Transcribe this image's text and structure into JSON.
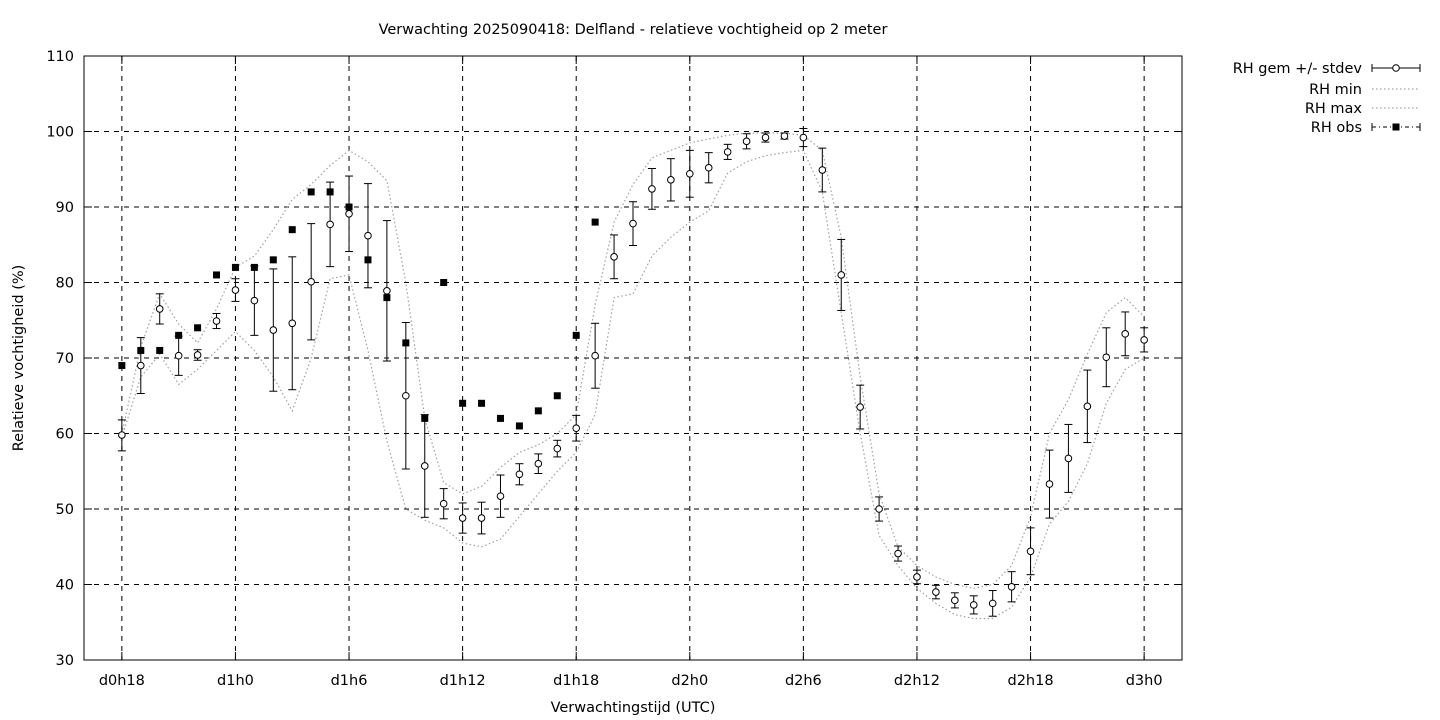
{
  "chart_data": {
    "type": "line",
    "title": "Verwachting 2025090418: Delfland - relatieve vochtigheid op 2 meter",
    "xlabel": "Verwachtingstijd (UTC)",
    "ylabel": "Relatieve vochtigheid (%)",
    "ylim": [
      30,
      110
    ],
    "xlim": [
      16,
      74
    ],
    "grid": true,
    "legend_position": "outside-top-right",
    "x_ticks": [
      {
        "x": 18,
        "label": "d0h18"
      },
      {
        "x": 24,
        "label": "d1h0"
      },
      {
        "x": 30,
        "label": "d1h6"
      },
      {
        "x": 36,
        "label": "d1h12"
      },
      {
        "x": 42,
        "label": "d1h18"
      },
      {
        "x": 48,
        "label": "d2h0"
      },
      {
        "x": 54,
        "label": "d2h6"
      },
      {
        "x": 60,
        "label": "d2h12"
      },
      {
        "x": 66,
        "label": "d2h18"
      },
      {
        "x": 72,
        "label": "d3h0"
      }
    ],
    "y_ticks": [
      "30",
      "40",
      "50",
      "60",
      "70",
      "80",
      "90",
      "100",
      "110"
    ],
    "x": [
      18,
      19,
      20,
      21,
      22,
      23,
      24,
      25,
      26,
      27,
      28,
      29,
      30,
      31,
      32,
      33,
      34,
      35,
      36,
      37,
      38,
      39,
      40,
      41,
      42,
      43,
      44,
      45,
      46,
      47,
      48,
      49,
      50,
      51,
      52,
      53,
      54,
      55,
      56,
      57,
      58,
      59,
      60,
      61,
      62,
      63,
      64,
      65,
      66,
      67,
      68,
      69,
      70,
      71,
      72
    ],
    "series": [
      {
        "name": "RH gem +/- stdev",
        "style": "errorbars",
        "color": "#000000",
        "values": [
          59.8,
          69.0,
          76.5,
          70.3,
          70.4,
          74.9,
          79.0,
          77.6,
          73.7,
          74.6,
          80.1,
          87.7,
          89.1,
          86.2,
          78.9,
          65.0,
          55.7,
          50.7,
          48.8,
          48.8,
          51.7,
          54.6,
          56.0,
          58.0,
          60.7,
          70.3,
          83.4,
          87.8,
          92.4,
          93.6,
          94.4,
          95.2,
          97.3,
          98.7,
          99.2,
          99.4,
          99.2,
          94.9,
          81.0,
          63.5,
          50.0,
          44.1,
          41.0,
          39.0,
          37.9,
          37.3,
          37.5,
          39.7,
          44.4,
          53.3,
          56.7,
          63.6,
          70.1,
          73.2,
          72.4
        ],
        "stdev_low": [
          57.7,
          65.3,
          74.5,
          67.7,
          69.7,
          73.9,
          77.5,
          73.0,
          65.6,
          65.8,
          72.4,
          82.1,
          84.1,
          79.3,
          69.6,
          55.3,
          48.9,
          48.7,
          46.8,
          46.7,
          48.9,
          53.2,
          54.7,
          56.9,
          59.0,
          66.0,
          80.5,
          84.9,
          89.7,
          90.8,
          91.3,
          93.2,
          96.3,
          97.7,
          98.6,
          99.0,
          98.0,
          92.0,
          76.3,
          60.6,
          48.4,
          43.1,
          40.1,
          38.1,
          36.9,
          36.1,
          35.8,
          37.7,
          41.3,
          48.8,
          52.2,
          58.8,
          66.2,
          70.3,
          70.8
        ],
        "stdev_high": [
          61.8,
          72.7,
          78.5,
          72.9,
          71.1,
          75.9,
          80.5,
          82.2,
          81.8,
          83.4,
          87.8,
          93.3,
          94.1,
          93.1,
          88.2,
          74.7,
          62.5,
          52.7,
          50.8,
          50.9,
          54.5,
          56.0,
          57.3,
          59.1,
          62.4,
          74.6,
          86.3,
          90.7,
          95.1,
          96.4,
          97.5,
          97.2,
          98.3,
          99.7,
          99.8,
          99.8,
          100.4,
          97.8,
          85.7,
          66.4,
          51.6,
          45.1,
          41.9,
          39.9,
          38.9,
          38.5,
          39.2,
          41.7,
          47.5,
          57.8,
          61.2,
          68.4,
          74.0,
          76.1,
          74.0
        ]
      },
      {
        "name": "RH min",
        "style": "dotted",
        "color": "#a0a0a0",
        "values": [
          59.5,
          67.5,
          70.5,
          66.5,
          68.5,
          71.0,
          73.5,
          71.0,
          67.5,
          63.0,
          70.0,
          80.5,
          81.0,
          71.0,
          59.0,
          50.0,
          48.5,
          47.5,
          45.5,
          45.0,
          46.0,
          49.0,
          52.0,
          55.0,
          57.5,
          62.5,
          78.0,
          78.5,
          83.5,
          86.0,
          88.0,
          89.5,
          94.5,
          96.0,
          96.8,
          97.2,
          97.5,
          92.0,
          76.0,
          60.0,
          46.5,
          42.5,
          39.5,
          37.5,
          36.0,
          35.5,
          35.5,
          37.0,
          41.0,
          48.0,
          51.0,
          56.0,
          64.0,
          68.5,
          70.0
        ]
      },
      {
        "name": "RH max",
        "style": "dotted",
        "color": "#a0a0a0",
        "values": [
          60.0,
          71.5,
          78.5,
          74.5,
          72.0,
          76.5,
          82.0,
          83.5,
          87.0,
          91.0,
          93.0,
          95.5,
          97.5,
          96.0,
          93.5,
          80.0,
          62.0,
          53.5,
          52.0,
          53.0,
          55.5,
          57.5,
          58.5,
          60.0,
          62.5,
          77.0,
          88.0,
          93.0,
          96.5,
          97.5,
          98.5,
          99.0,
          99.5,
          99.8,
          99.8,
          99.8,
          99.5,
          97.5,
          86.0,
          67.5,
          52.0,
          45.0,
          42.5,
          41.0,
          40.0,
          39.5,
          40.0,
          42.5,
          49.0,
          60.0,
          64.5,
          70.5,
          76.0,
          78.0,
          75.5
        ]
      },
      {
        "name": "RH obs",
        "style": "points",
        "color": "#000000",
        "x": [
          18,
          19,
          20,
          21,
          22,
          23,
          24,
          25,
          26,
          27,
          28,
          29,
          30,
          31,
          32,
          33,
          34,
          35,
          36,
          37,
          38,
          39,
          40,
          41,
          42,
          43
        ],
        "values": [
          69,
          71,
          71,
          73,
          74,
          81,
          82,
          82,
          83,
          87,
          92,
          92,
          90,
          83,
          78,
          72,
          62,
          80,
          64,
          64,
          62,
          61,
          63,
          65,
          73,
          88
        ]
      }
    ]
  }
}
